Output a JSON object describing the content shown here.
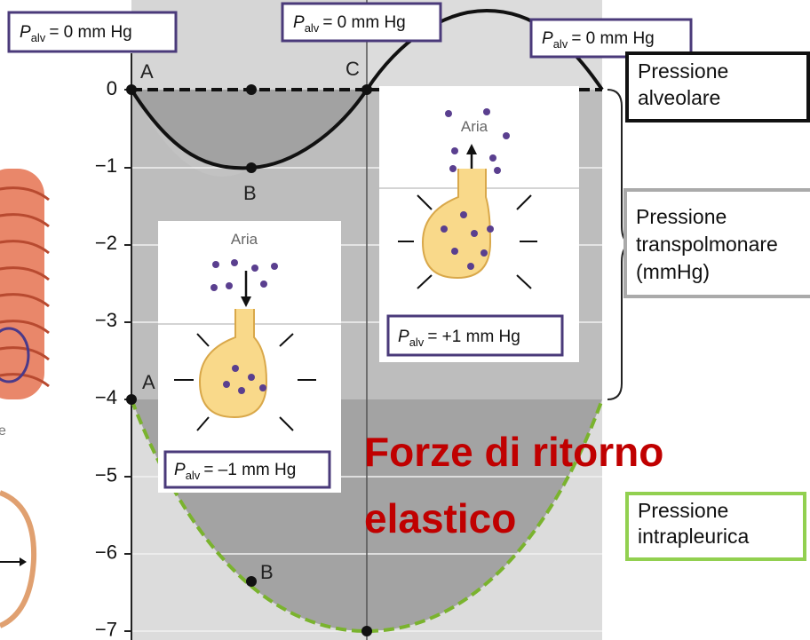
{
  "top_labels": [
    {
      "symbol": "P",
      "subscript": "alv",
      "text": "= 0 mm Hg"
    },
    {
      "symbol": "P",
      "subscript": "alv",
      "text": "= 0 mm Hg"
    },
    {
      "symbol": "P",
      "subscript": "alv",
      "text": "= 0 mm Hg"
    }
  ],
  "y_tick_labels": [
    "0",
    "−1",
    "−2",
    "−3",
    "−4",
    "−5",
    "−6",
    "−7"
  ],
  "points": [
    "A",
    "B",
    "C",
    "A",
    "B"
  ],
  "insets": [
    {
      "air": "Aria",
      "pressure": {
        "symbol": "P",
        "subscript": "alv",
        "text": "= –1 mm Hg"
      }
    },
    {
      "air": "Aria",
      "pressure": {
        "symbol": "P",
        "subscript": "alv",
        "text": "= +1 mm Hg"
      }
    }
  ],
  "legend": {
    "alveolar": [
      "Pressione",
      "alveolare"
    ],
    "transpulmonary": [
      "Pressione",
      "transpolmonare",
      "(mmHg)"
    ],
    "intrapleural": [
      "Pressione",
      "intrapleurica"
    ]
  },
  "annotation": [
    "Forze di ritorno",
    "elastico"
  ]
}
